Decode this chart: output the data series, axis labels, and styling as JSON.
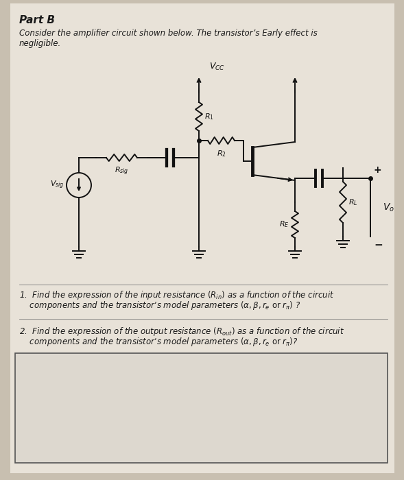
{
  "bg_color": "#c8bfb0",
  "paper_color": "#e8e2d8",
  "title": "Part B",
  "intro_line1": "Consider the amplifier circuit shown below. The transistor’s Early effect is",
  "intro_line2": "negligible.",
  "text_color": "#1a1a1a",
  "circuit_line_color": "#111111",
  "font_size_title": 11,
  "font_size_body": 8.5,
  "font_size_circuit": 8,
  "q1_line1": "1.  Find the expression of the input resistance $(R_{in})$ as a function of the circuit",
  "q1_line2": "    components and the transistor’s model parameters $(\\alpha, \\beta, r_e \\text{ or } r_\\pi)$ ?",
  "q2_line1": "2.  Find the expression of the output resistance $(R_{out})$ as a function of the circuit",
  "q2_line2": "    components and the transistor’s model parameters $(\\alpha, \\beta, r_e \\text{ or } r_\\pi)$?"
}
